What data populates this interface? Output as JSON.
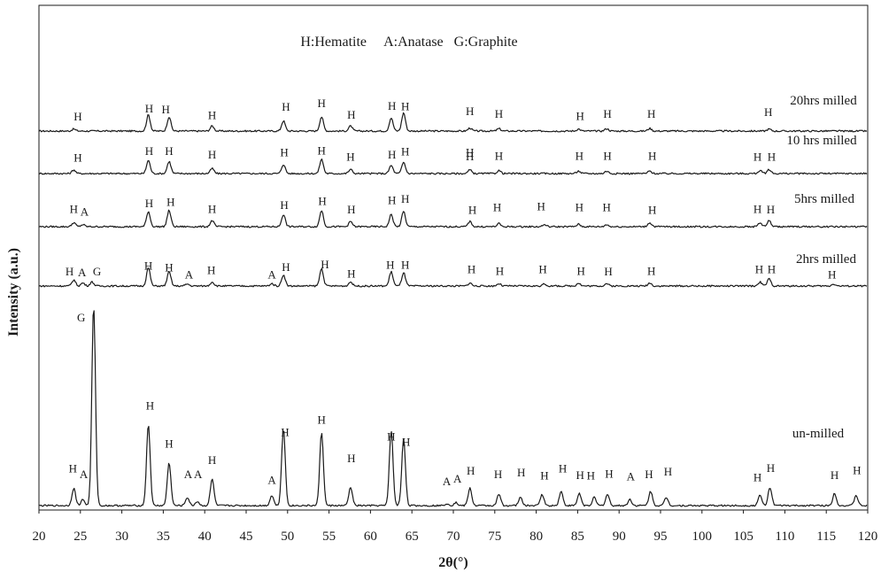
{
  "chart_data": {
    "type": "line",
    "title": "",
    "xlabel": "2θ(°)",
    "ylabel": "Intensity (a.u.)",
    "xlim": [
      20,
      120
    ],
    "x_ticks": [
      20,
      25,
      30,
      35,
      40,
      45,
      50,
      55,
      60,
      65,
      70,
      75,
      80,
      85,
      90,
      95,
      100,
      105,
      110,
      115,
      120
    ],
    "legend_text": "H:Hematite     A:Anatase   G:Graphite",
    "grid": false,
    "series": [
      {
        "name": "20hrs milled",
        "offset": 0.84,
        "peaks": [
          [
            24.2,
            0.01
          ],
          [
            33.2,
            0.08
          ],
          [
            35.7,
            0.07
          ],
          [
            40.9,
            0.025
          ],
          [
            49.5,
            0.05
          ],
          [
            54.1,
            0.07
          ],
          [
            57.6,
            0.025
          ],
          [
            62.5,
            0.065
          ],
          [
            64.0,
            0.09
          ],
          [
            72.0,
            0.015
          ],
          [
            75.5,
            0.012
          ],
          [
            85.1,
            0.01
          ],
          [
            88.5,
            0.012
          ],
          [
            93.7,
            0.013
          ],
          [
            108.1,
            0.01
          ]
        ],
        "labels": [
          [
            "H",
            24.7,
            0.893
          ],
          [
            "H",
            33.3,
            0.932
          ],
          [
            "H",
            35.3,
            0.928
          ],
          [
            "H",
            40.9,
            0.898
          ],
          [
            "H",
            49.8,
            0.94
          ],
          [
            "H",
            54.1,
            0.958
          ],
          [
            "H",
            57.7,
            0.901
          ],
          [
            "H",
            62.6,
            0.945
          ],
          [
            "H",
            64.2,
            0.943
          ],
          [
            "H",
            72.0,
            0.918
          ],
          [
            "H",
            75.5,
            0.906
          ],
          [
            "H",
            85.3,
            0.895
          ],
          [
            "H",
            88.6,
            0.905
          ],
          [
            "H",
            93.9,
            0.906
          ],
          [
            "H",
            108.0,
            0.913
          ]
        ],
        "label_text": "20hrs milled"
      },
      {
        "name": "10 hrs milled",
        "offset": 0.71,
        "peaks": [
          [
            24.2,
            0.018
          ],
          [
            33.2,
            0.065
          ],
          [
            35.7,
            0.06
          ],
          [
            40.9,
            0.025
          ],
          [
            49.5,
            0.045
          ],
          [
            54.1,
            0.07
          ],
          [
            57.6,
            0.02
          ],
          [
            62.5,
            0.04
          ],
          [
            64.0,
            0.055
          ],
          [
            72.0,
            0.018
          ],
          [
            75.5,
            0.015
          ],
          [
            85.1,
            0.012
          ],
          [
            88.5,
            0.012
          ],
          [
            93.7,
            0.012
          ],
          [
            107.0,
            0.015
          ],
          [
            108.1,
            0.02
          ]
        ],
        "labels": [
          [
            "H",
            24.7,
            0.769
          ],
          [
            "H",
            33.3,
            0.801
          ],
          [
            "H",
            35.7,
            0.801
          ],
          [
            "H",
            40.9,
            0.785
          ],
          [
            "H",
            49.6,
            0.795
          ],
          [
            "H",
            54.1,
            0.803
          ],
          [
            "H",
            57.6,
            0.772
          ],
          [
            "H",
            62.6,
            0.784
          ],
          [
            "H",
            64.2,
            0.799
          ],
          [
            "H",
            72.0,
            0.795
          ],
          [
            "H",
            72.0,
            0.776
          ],
          [
            "H",
            75.5,
            0.777
          ],
          [
            "H",
            85.2,
            0.778
          ],
          [
            "H",
            88.6,
            0.778
          ],
          [
            "H",
            94.0,
            0.778
          ],
          [
            "H",
            106.7,
            0.774
          ],
          [
            "H",
            108.4,
            0.774
          ]
        ],
        "label_text": "10 hrs milled"
      },
      {
        "name": "5hrs milled",
        "offset": 0.57,
        "peaks": [
          [
            24.2,
            0.02
          ],
          [
            25.3,
            0.01
          ],
          [
            33.2,
            0.075
          ],
          [
            35.7,
            0.08
          ],
          [
            40.9,
            0.03
          ],
          [
            49.5,
            0.06
          ],
          [
            54.1,
            0.08
          ],
          [
            57.6,
            0.025
          ],
          [
            62.5,
            0.06
          ],
          [
            64.0,
            0.075
          ],
          [
            72.0,
            0.025
          ],
          [
            75.5,
            0.015
          ],
          [
            81.0,
            0.01
          ],
          [
            85.1,
            0.012
          ],
          [
            88.5,
            0.01
          ],
          [
            93.7,
            0.02
          ],
          [
            107.0,
            0.02
          ],
          [
            108.1,
            0.03
          ]
        ],
        "labels": [
          [
            "H",
            24.2,
            0.637
          ],
          [
            "A",
            25.5,
            0.625
          ],
          [
            "H",
            33.3,
            0.666
          ],
          [
            "H",
            35.9,
            0.672
          ],
          [
            "H",
            40.9,
            0.637
          ],
          [
            "H",
            49.6,
            0.656
          ],
          [
            "H",
            54.2,
            0.676
          ],
          [
            "H",
            57.7,
            0.635
          ],
          [
            "H",
            62.6,
            0.681
          ],
          [
            "H",
            64.2,
            0.688
          ],
          [
            "H",
            72.3,
            0.633
          ],
          [
            "H",
            75.3,
            0.647
          ],
          [
            "H",
            80.6,
            0.651
          ],
          [
            "H",
            85.2,
            0.646
          ],
          [
            "H",
            88.5,
            0.646
          ],
          [
            "H",
            94.0,
            0.634
          ],
          [
            "H",
            106.7,
            0.638
          ],
          [
            "H",
            108.3,
            0.636
          ]
        ],
        "label_text": "5hrs milled"
      },
      {
        "name": "2hrs milled",
        "offset": 0.43,
        "peaks": [
          [
            24.2,
            0.03
          ],
          [
            25.3,
            0.015
          ],
          [
            26.4,
            0.02
          ],
          [
            33.2,
            0.09
          ],
          [
            35.7,
            0.07
          ],
          [
            37.9,
            0.01
          ],
          [
            40.9,
            0.02
          ],
          [
            48.1,
            0.012
          ],
          [
            49.5,
            0.055
          ],
          [
            54.1,
            0.085
          ],
          [
            57.6,
            0.02
          ],
          [
            62.5,
            0.07
          ],
          [
            64.0,
            0.065
          ],
          [
            72.0,
            0.015
          ],
          [
            75.5,
            0.012
          ],
          [
            81.0,
            0.01
          ],
          [
            85.1,
            0.015
          ],
          [
            88.5,
            0.012
          ],
          [
            93.7,
            0.015
          ],
          [
            107.0,
            0.02
          ],
          [
            108.1,
            0.035
          ],
          [
            115.9,
            0.01
          ]
        ],
        "labels": [
          [
            "H",
            23.7,
            0.482
          ],
          [
            "A",
            25.2,
            0.478
          ],
          [
            "G",
            27.0,
            0.482
          ],
          [
            "H",
            33.2,
            0.511
          ],
          [
            "H",
            35.7,
            0.502
          ],
          [
            "A",
            38.1,
            0.466
          ],
          [
            "H",
            40.8,
            0.488
          ],
          [
            "A",
            48.1,
            0.467
          ],
          [
            "H",
            49.8,
            0.505
          ],
          [
            "H",
            54.5,
            0.518
          ],
          [
            "H",
            57.7,
            0.472
          ],
          [
            "H",
            62.4,
            0.514
          ],
          [
            "H",
            64.2,
            0.514
          ],
          [
            "H",
            72.2,
            0.494
          ],
          [
            "H",
            75.6,
            0.484
          ],
          [
            "H",
            80.8,
            0.494
          ],
          [
            "H",
            85.4,
            0.484
          ],
          [
            "H",
            88.7,
            0.482
          ],
          [
            "H",
            93.9,
            0.484
          ],
          [
            "H",
            106.9,
            0.492
          ],
          [
            "H",
            108.4,
            0.492
          ],
          [
            "H",
            115.7,
            0.468
          ]
        ],
        "label_text": "2hrs milled"
      },
      {
        "name": "un-milled",
        "offset": 0.0,
        "peaks": [
          [
            24.2,
            0.085
          ],
          [
            25.3,
            0.03
          ],
          [
            26.6,
            0.98
          ],
          [
            33.2,
            0.4
          ],
          [
            35.7,
            0.21
          ],
          [
            37.9,
            0.04
          ],
          [
            39.1,
            0.02
          ],
          [
            40.9,
            0.13
          ],
          [
            48.1,
            0.05
          ],
          [
            49.5,
            0.38
          ],
          [
            54.1,
            0.36
          ],
          [
            57.6,
            0.09
          ],
          [
            62.5,
            0.37
          ],
          [
            64.0,
            0.33
          ],
          [
            69.2,
            0.01
          ],
          [
            70.3,
            0.015
          ],
          [
            72.0,
            0.085
          ],
          [
            75.5,
            0.055
          ],
          [
            78.1,
            0.04
          ],
          [
            80.7,
            0.055
          ],
          [
            83.0,
            0.07
          ],
          [
            85.2,
            0.06
          ],
          [
            87.0,
            0.04
          ],
          [
            88.6,
            0.055
          ],
          [
            91.3,
            0.03
          ],
          [
            93.8,
            0.07
          ],
          [
            95.7,
            0.04
          ],
          [
            107.0,
            0.05
          ],
          [
            108.2,
            0.09
          ],
          [
            116.0,
            0.06
          ],
          [
            118.6,
            0.05
          ]
        ],
        "labels": [
          [
            "G",
            25.1,
            0.904
          ],
          [
            "H",
            33.4,
            0.471
          ],
          [
            "H",
            35.7,
            0.284
          ],
          [
            "A",
            38.0,
            0.134
          ],
          [
            "A",
            39.2,
            0.134
          ],
          [
            "H",
            40.9,
            0.204
          ],
          [
            "A",
            48.1,
            0.106
          ],
          [
            "H",
            49.7,
            0.342
          ],
          [
            "H",
            54.1,
            0.402
          ],
          [
            "H",
            57.7,
            0.213
          ],
          [
            "H",
            62.5,
            0.319
          ],
          [
            "H",
            64.3,
            0.294
          ],
          [
            "A",
            69.2,
            0.099
          ],
          [
            "A",
            70.5,
            0.113
          ],
          [
            "H",
            72.1,
            0.153
          ],
          [
            "H",
            75.4,
            0.134
          ],
          [
            "H",
            78.2,
            0.144
          ],
          [
            "H",
            81.0,
            0.129
          ],
          [
            "H",
            83.2,
            0.162
          ],
          [
            "H",
            85.3,
            0.13
          ],
          [
            "H",
            86.6,
            0.129
          ],
          [
            "H",
            88.8,
            0.136
          ],
          [
            "A",
            91.4,
            0.123
          ],
          [
            "H",
            93.6,
            0.134
          ],
          [
            "H",
            95.9,
            0.148
          ],
          [
            "H",
            106.7,
            0.12
          ],
          [
            "H",
            108.3,
            0.166
          ],
          [
            "H",
            116.0,
            0.131
          ],
          [
            "H",
            118.7,
            0.155
          ],
          [
            "H",
            24.1,
            0.164
          ],
          [
            "A",
            25.4,
            0.135
          ]
        ],
        "label_text": "un-milled"
      }
    ]
  }
}
